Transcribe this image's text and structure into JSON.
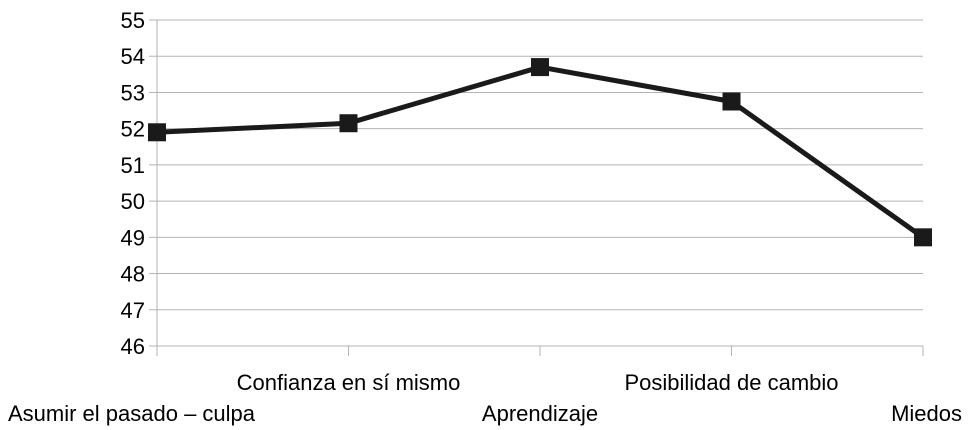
{
  "chart_data": {
    "type": "line",
    "categories": [
      "Asumir el pasado – culpa",
      "Confianza en sí mismo",
      "Aprendizaje",
      "Posibilidad de cambio",
      "Miedos"
    ],
    "series": [
      {
        "values": [
          51.9,
          52.15,
          53.7,
          52.75,
          49.0
        ]
      }
    ],
    "ylim": [
      46,
      55
    ],
    "yticks": [
      46,
      47,
      48,
      49,
      50,
      51,
      52,
      53,
      54,
      55
    ],
    "grid": true,
    "legend": "none",
    "title": "",
    "xlabel": "",
    "ylabel": "",
    "colors": {
      "line": "#1a1a1a",
      "marker": "#1a1a1a",
      "grid": "#b3b3b3",
      "axis": "#b3b3b3"
    }
  }
}
